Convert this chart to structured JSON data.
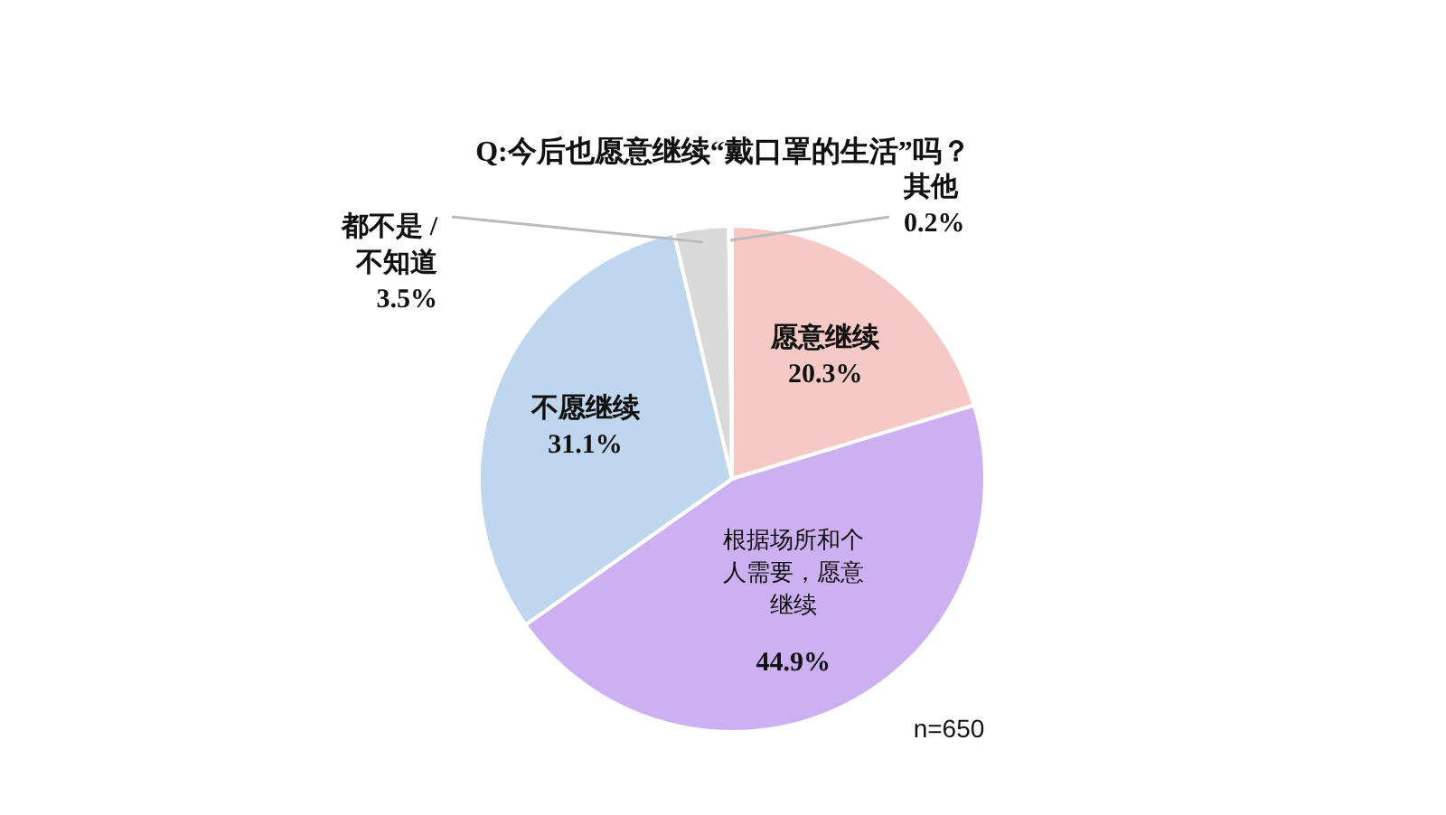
{
  "chart_data": {
    "type": "pie",
    "title": "Q:今后也愿意继续“戴口罩的生活”吗？",
    "categories": [
      "愿意继续",
      "根据场所和个人需要，愿意继续",
      "不愿继续",
      "都不是 / 不知道",
      "其他"
    ],
    "values": [
      20.3,
      44.9,
      31.1,
      3.5,
      0.2
    ],
    "colors": [
      "#f6c9c6",
      "#cdb0f2",
      "#bed6ee",
      "#d9d9d9",
      "#e6e6e6"
    ],
    "value_labels": [
      "20.3%",
      "44.9%",
      "31.1%",
      "3.5%",
      "0.2%"
    ],
    "annotations": [
      "n=650"
    ]
  }
}
